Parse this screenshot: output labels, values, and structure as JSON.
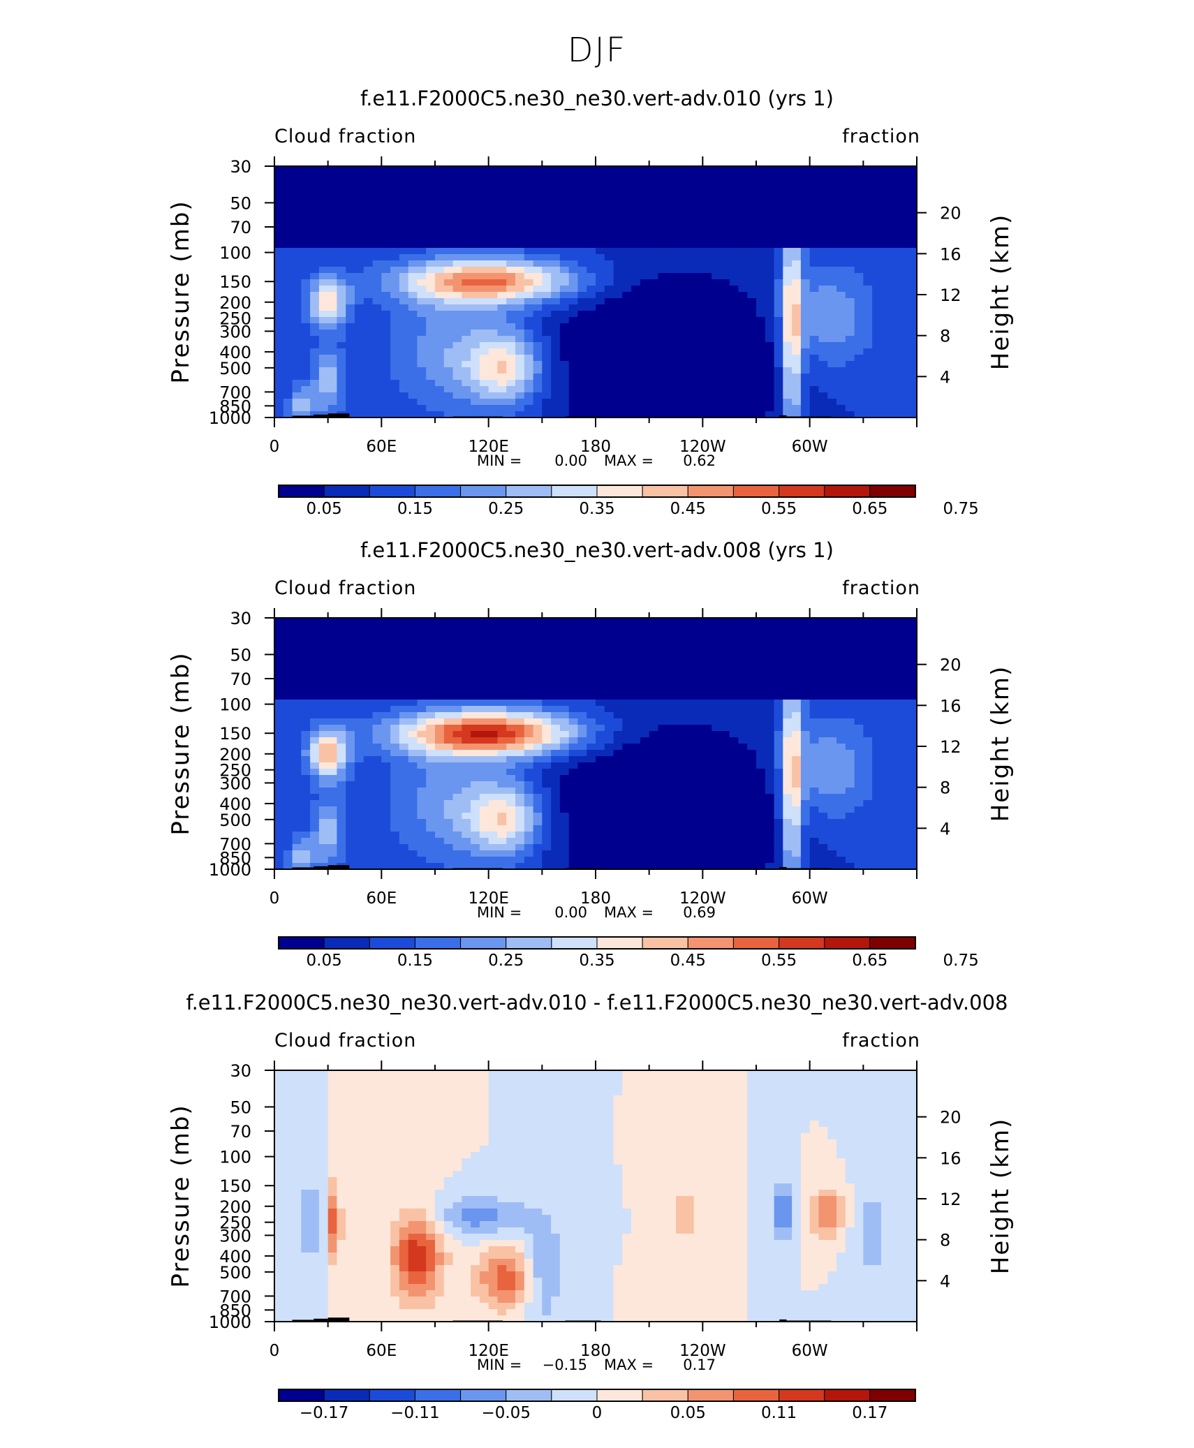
{
  "figure": {
    "title": "DJF"
  },
  "chart_data": [
    {
      "type": "heatmap",
      "title": "f.e11.F2000C5.ne30_ne30.vert-adv.010 (yrs 1)",
      "left_label": "Cloud fraction",
      "right_label": "fraction",
      "ylabel": "Pressure (mb)",
      "ylabel_right": "Height (km)",
      "y_scale": "log",
      "ylim": [
        1000,
        30
      ],
      "y_ticks": [
        "30",
        "50",
        "70",
        "100",
        "150",
        "200",
        "250",
        "300",
        "400",
        "500",
        "700",
        "850",
        "1000"
      ],
      "y_tick_values": [
        30,
        50,
        70,
        100,
        150,
        200,
        250,
        300,
        400,
        500,
        700,
        850,
        1000
      ],
      "y_right_ticks": [
        "20",
        "16",
        "12",
        "8",
        "4"
      ],
      "y_right_tick_values": [
        20,
        16,
        12,
        8,
        4
      ],
      "x_ticks": [
        "0",
        "60E",
        "120E",
        "180",
        "120W",
        "60W"
      ],
      "x_tick_values": [
        0,
        60,
        120,
        180,
        240,
        300
      ],
      "xlim": [
        0,
        360
      ],
      "min_label": "MIN =",
      "min_value": "0.00",
      "max_label": "MAX =",
      "max_value": "0.62",
      "colorbar_labels": [
        "0.05",
        "0.15",
        "0.25",
        "0.35",
        "0.45",
        "0.55",
        "0.65",
        "0.75"
      ],
      "colorbar_colors": [
        "#00008f",
        "#0a2bb8",
        "#1d4bd9",
        "#3a6fe8",
        "#6b96ef",
        "#9fbdf5",
        "#cfe0fa",
        "#fde7da",
        "#f9c2a5",
        "#f39470",
        "#e8643f",
        "#d4381e",
        "#b3160b",
        "#7f0000"
      ],
      "colorbar_min": 0.0,
      "colorbar_max": 0.8
    },
    {
      "type": "heatmap",
      "title": "f.e11.F2000C5.ne30_ne30.vert-adv.008 (yrs 1)",
      "left_label": "Cloud fraction",
      "right_label": "fraction",
      "ylabel": "Pressure (mb)",
      "ylabel_right": "Height (km)",
      "y_scale": "log",
      "ylim": [
        1000,
        30
      ],
      "y_ticks": [
        "30",
        "50",
        "70",
        "100",
        "150",
        "200",
        "250",
        "300",
        "400",
        "500",
        "700",
        "850",
        "1000"
      ],
      "y_tick_values": [
        30,
        50,
        70,
        100,
        150,
        200,
        250,
        300,
        400,
        500,
        700,
        850,
        1000
      ],
      "y_right_ticks": [
        "20",
        "16",
        "12",
        "8",
        "4"
      ],
      "y_right_tick_values": [
        20,
        16,
        12,
        8,
        4
      ],
      "x_ticks": [
        "0",
        "60E",
        "120E",
        "180",
        "120W",
        "60W"
      ],
      "x_tick_values": [
        0,
        60,
        120,
        180,
        240,
        300
      ],
      "xlim": [
        0,
        360
      ],
      "min_label": "MIN =",
      "min_value": "0.00",
      "max_label": "MAX =",
      "max_value": "0.69",
      "colorbar_labels": [
        "0.05",
        "0.15",
        "0.25",
        "0.35",
        "0.45",
        "0.55",
        "0.65",
        "0.75"
      ],
      "colorbar_colors": [
        "#00008f",
        "#0a2bb8",
        "#1d4bd9",
        "#3a6fe8",
        "#6b96ef",
        "#9fbdf5",
        "#cfe0fa",
        "#fde7da",
        "#f9c2a5",
        "#f39470",
        "#e8643f",
        "#d4381e",
        "#b3160b",
        "#7f0000"
      ],
      "colorbar_min": 0.0,
      "colorbar_max": 0.8
    },
    {
      "type": "heatmap",
      "title": "f.e11.F2000C5.ne30_ne30.vert-adv.010 - f.e11.F2000C5.ne30_ne30.vert-adv.008",
      "left_label": "Cloud fraction",
      "right_label": "fraction",
      "ylabel": "Pressure (mb)",
      "ylabel_right": "Height (km)",
      "y_scale": "log",
      "ylim": [
        1000,
        30
      ],
      "y_ticks": [
        "30",
        "50",
        "70",
        "100",
        "150",
        "200",
        "250",
        "300",
        "400",
        "500",
        "700",
        "850",
        "1000"
      ],
      "y_tick_values": [
        30,
        50,
        70,
        100,
        150,
        200,
        250,
        300,
        400,
        500,
        700,
        850,
        1000
      ],
      "y_right_ticks": [
        "20",
        "16",
        "12",
        "8",
        "4"
      ],
      "y_right_tick_values": [
        20,
        16,
        12,
        8,
        4
      ],
      "x_ticks": [
        "0",
        "60E",
        "120E",
        "180",
        "120W",
        "60W"
      ],
      "x_tick_values": [
        0,
        60,
        120,
        180,
        240,
        300
      ],
      "xlim": [
        0,
        360
      ],
      "min_label": "MIN =",
      "min_value": "−0.15",
      "max_label": "MAX =",
      "max_value": "0.17",
      "colorbar_labels": [
        "−0.17",
        "−0.11",
        "−0.05",
        "0",
        "0.05",
        "0.11",
        "0.17"
      ],
      "colorbar_colors": [
        "#00008f",
        "#0a2bb8",
        "#1d4bd9",
        "#3a6fe8",
        "#6b96ef",
        "#9fbdf5",
        "#cfe0fa",
        "#fde7da",
        "#f9c2a5",
        "#f39470",
        "#e8643f",
        "#d4381e",
        "#b3160b",
        "#7f0000"
      ],
      "colorbar_min": -0.23,
      "colorbar_max": 0.23
    }
  ]
}
